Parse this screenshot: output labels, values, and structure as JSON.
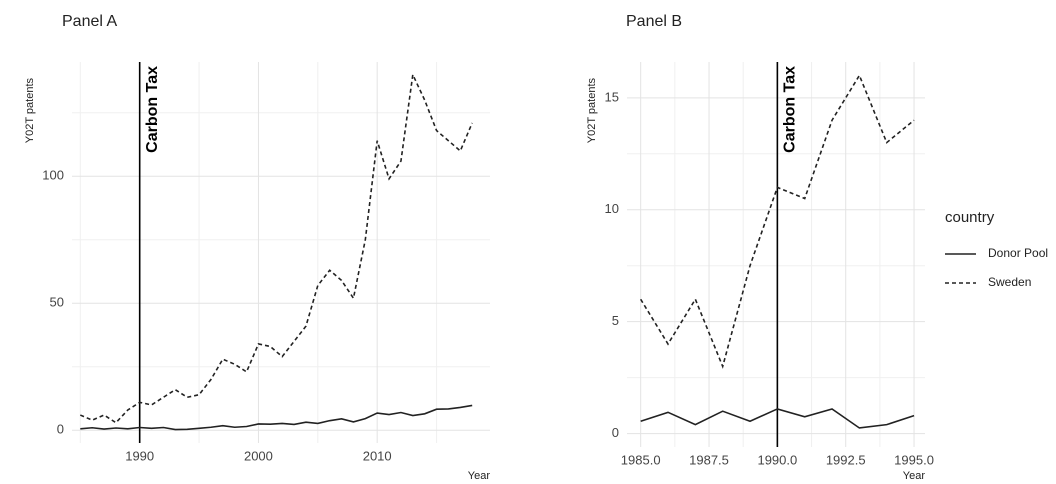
{
  "chart_data": [
    {
      "type": "line",
      "title": "Panel A",
      "x_label": "Year",
      "y_label": "Y02T patents",
      "x": [
        1985,
        1986,
        1987,
        1988,
        1989,
        1990,
        1991,
        1992,
        1993,
        1994,
        1995,
        1996,
        1997,
        1998,
        1999,
        2000,
        2001,
        2002,
        2003,
        2004,
        2005,
        2006,
        2007,
        2008,
        2009,
        2010,
        2011,
        2012,
        2013,
        2014,
        2015,
        2016,
        2017,
        2018
      ],
      "series": [
        {
          "name": "Donor Pool",
          "color": "#222222",
          "linestyle": "solid",
          "values": [
            0.6,
            1,
            0.5,
            0.9,
            0.6,
            1.1,
            0.8,
            1.1,
            0.3,
            0.4,
            0.8,
            1.2,
            1.8,
            1.2,
            1.5,
            2.5,
            2.4,
            2.7,
            2.3,
            3.2,
            2.7,
            3.8,
            4.5,
            3.3,
            4.6,
            6.8,
            6.2,
            7,
            5.8,
            6.5,
            8.3,
            8.4,
            9,
            9.8
          ]
        },
        {
          "name": "Sweden",
          "color": "#222222",
          "linestyle": "dashed",
          "values": [
            6,
            4,
            6,
            3,
            8,
            11,
            10,
            13,
            16,
            13,
            14,
            20,
            28,
            26,
            23,
            34,
            33,
            29,
            35,
            41,
            57,
            63,
            59,
            52,
            75,
            114,
            99,
            106,
            140,
            130,
            118,
            114,
            110,
            121
          ]
        }
      ],
      "xlim": [
        1984.3,
        2019.5
      ],
      "xticks": [
        1990,
        2000,
        2010
      ],
      "ylim": [
        -5,
        145
      ],
      "yticks": [
        0,
        50,
        100
      ],
      "grid": true,
      "vline": 1990,
      "annotation": "Carbon Tax"
    },
    {
      "type": "line",
      "title": "Panel B",
      "x_label": "Year",
      "y_label": "Y02T patents",
      "x": [
        1985,
        1986,
        1987,
        1988,
        1989,
        1990,
        1991,
        1992,
        1993,
        1994,
        1995
      ],
      "series": [
        {
          "name": "Donor Pool",
          "color": "#222222",
          "linestyle": "solid",
          "values": [
            0.55,
            0.95,
            0.4,
            1.0,
            0.55,
            1.1,
            0.75,
            1.1,
            0.25,
            0.4,
            0.8
          ]
        },
        {
          "name": "Sweden",
          "color": "#222222",
          "linestyle": "dashed",
          "values": [
            6,
            4,
            6,
            3,
            7.5,
            11,
            10.5,
            14,
            16,
            13,
            14
          ]
        }
      ],
      "xlim": [
        1984.5,
        1995.4
      ],
      "xticks": [
        {
          "value": 1985,
          "label": "1985.0"
        },
        {
          "value": 1987.5,
          "label": "1987.5"
        },
        {
          "value": 1990,
          "label": "1990.0"
        },
        {
          "value": 1992.5,
          "label": "1992.5"
        },
        {
          "value": 1995,
          "label": "1995.0"
        }
      ],
      "ylim": [
        -0.6,
        16.6
      ],
      "yticks": [
        0,
        5,
        10,
        15
      ],
      "grid": true,
      "vline": 1990,
      "annotation": "Carbon Tax",
      "legend_title": "country",
      "legend": "right"
    }
  ]
}
